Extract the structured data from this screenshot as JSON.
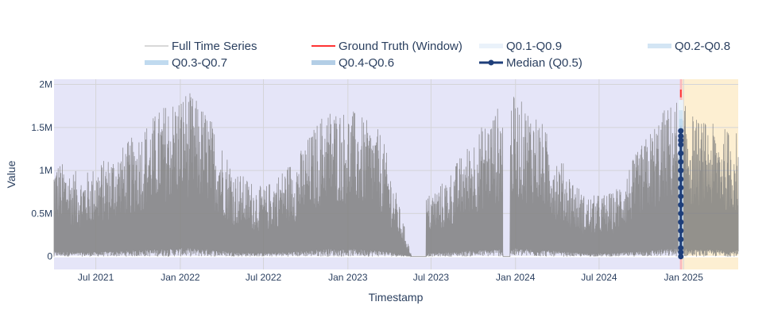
{
  "chart_data": {
    "type": "line",
    "title": "",
    "xlabel": "Timestamp",
    "ylabel": "Value",
    "x_range": [
      "2021-04-01",
      "2025-04-30"
    ],
    "ylim": [
      -150000,
      2060000
    ],
    "grid": true,
    "legend_placement": "top",
    "plot_background": "#e5e5f8",
    "x_ticks": [
      {
        "date": "2021-07-01",
        "label": "Jul 2021"
      },
      {
        "date": "2022-01-01",
        "label": "Jan 2022"
      },
      {
        "date": "2022-07-01",
        "label": "Jul 2022"
      },
      {
        "date": "2023-01-01",
        "label": "Jan 2023"
      },
      {
        "date": "2023-07-01",
        "label": "Jul 2023"
      },
      {
        "date": "2024-01-01",
        "label": "Jan 2024"
      },
      {
        "date": "2024-07-01",
        "label": "Jul 2024"
      },
      {
        "date": "2025-01-01",
        "label": "Jan 2025"
      }
    ],
    "y_ticks": [
      {
        "value": 0,
        "label": "0"
      },
      {
        "value": 500000,
        "label": "0.5M"
      },
      {
        "value": 1000000,
        "label": "1M"
      },
      {
        "value": 1500000,
        "label": "1.5M"
      },
      {
        "value": 2000000,
        "label": "2M"
      }
    ],
    "full_series": {
      "name": "Full Time Series",
      "color": "#808080",
      "start": "2021-04-01",
      "end": "2025-04-30",
      "gaps": [
        [
          "2023-05-20",
          "2023-06-20"
        ],
        [
          "2023-12-05",
          "2023-12-20"
        ]
      ],
      "peaks": [
        {
          "start": "2021-04-01",
          "peak": 1150000
        },
        {
          "start": "2021-06-01",
          "peak": 950000
        },
        {
          "start": "2021-09-01",
          "peak": 1300000
        },
        {
          "start": "2021-12-01",
          "peak": 1800000
        },
        {
          "start": "2022-01-15",
          "peak": 1950000
        },
        {
          "start": "2022-03-01",
          "peak": 1700000
        },
        {
          "start": "2022-05-01",
          "peak": 1000000
        },
        {
          "start": "2022-07-01",
          "peak": 800000
        },
        {
          "start": "2022-09-15",
          "peak": 1200000
        },
        {
          "start": "2022-11-15",
          "peak": 1750000
        },
        {
          "start": "2023-01-15",
          "peak": 1700000
        },
        {
          "start": "2023-03-15",
          "peak": 1450000
        },
        {
          "start": "2023-05-20",
          "peak": 0
        },
        {
          "start": "2023-06-20",
          "peak": 700000
        },
        {
          "start": "2023-08-01",
          "peak": 900000
        },
        {
          "start": "2023-10-01",
          "peak": 1400000
        },
        {
          "start": "2023-11-15",
          "peak": 1700000
        },
        {
          "start": "2023-12-20",
          "peak": 1900000
        },
        {
          "start": "2024-02-15",
          "peak": 1700000
        },
        {
          "start": "2024-04-01",
          "peak": 1200000
        },
        {
          "start": "2024-06-01",
          "peak": 700000
        },
        {
          "start": "2024-08-01",
          "peak": 750000
        },
        {
          "start": "2024-10-01",
          "peak": 1300000
        },
        {
          "start": "2024-11-15",
          "peak": 1700000
        },
        {
          "start": "2024-12-20",
          "peak": 1850000
        },
        {
          "start": "2025-02-01",
          "peak": 1600000
        },
        {
          "start": "2025-04-30",
          "peak": 1450000
        }
      ]
    },
    "history_window": {
      "start": "2024-12-24",
      "end": "2024-12-29",
      "color": "#ffb3b3"
    },
    "forecast_region": {
      "start": "2024-12-29",
      "end": "2025-04-30",
      "color": "#fdefd2"
    },
    "ground_truth": {
      "name": "Ground Truth (Window)",
      "color": "#ff3333",
      "date": "2024-12-26",
      "low": 1850000,
      "high": 1940000
    },
    "quantile_bands": [
      {
        "name": "Q0.1-Q0.9",
        "color": "#eaf2fa",
        "low": 0,
        "high": 1820000
      },
      {
        "name": "Q0.2-Q0.8",
        "color": "#d3e5f4",
        "low": 0,
        "high": 1700000
      },
      {
        "name": "Q0.3-Q0.7",
        "color": "#c0daef",
        "low": 0,
        "high": 1600000
      },
      {
        "name": "Q0.4-Q0.6",
        "color": "#b3cee6",
        "low": 0,
        "high": 1520000
      }
    ],
    "median": {
      "name": "Median (Q0.5)",
      "color": "#1f3f7a",
      "date": "2024-12-26",
      "values": [
        0,
        100000,
        200000,
        300000,
        400000,
        500000,
        600000,
        700000,
        800000,
        900000,
        1000000,
        1100000,
        1200000,
        1300000,
        1400000,
        1460000,
        1350000,
        1200000,
        1000000,
        800000,
        600000,
        400000,
        200000,
        50000
      ]
    }
  }
}
